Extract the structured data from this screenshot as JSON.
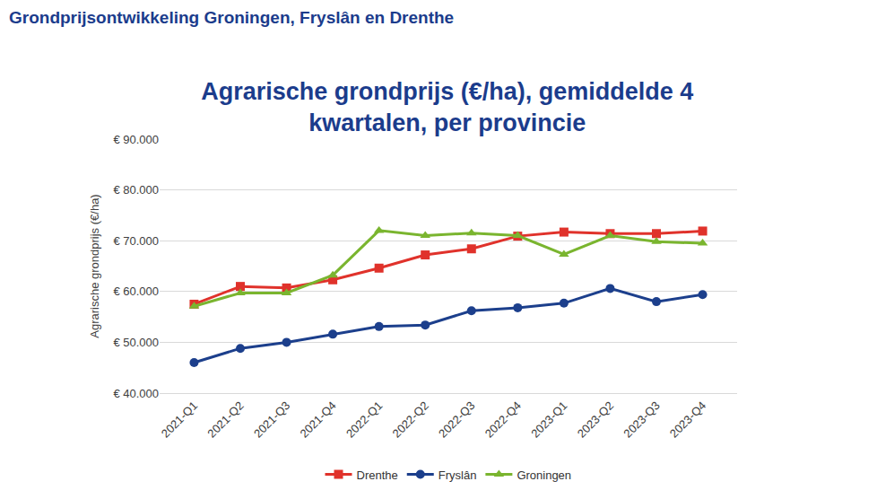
{
  "chart_data": {
    "type": "line",
    "subtitle": "Grondprijsontwikkeling Groningen, Fryslân en Drenthe",
    "title": "Agrarische grondprijs (€/ha), gemiddelde 4 kwartalen, per provincie",
    "y_label": "Agrarische grondprijs (€/ha)",
    "categories": [
      "2021-Q1",
      "2021-Q2",
      "2021-Q3",
      "2021-Q4",
      "2022-Q1",
      "2022-Q2",
      "2022-Q3",
      "2022-Q4",
      "2023-Q1",
      "2023-Q2",
      "2023-Q3",
      "2023-Q4"
    ],
    "series": [
      {
        "name": "Drenthe",
        "color": "#e0322b",
        "marker": "square",
        "values": [
          57500,
          61000,
          60700,
          62300,
          64600,
          67200,
          68400,
          70900,
          71700,
          71400,
          71400,
          71900
        ]
      },
      {
        "name": "Fryslân",
        "color": "#1c3f8c",
        "marker": "circle",
        "values": [
          46000,
          48800,
          50000,
          51600,
          53100,
          53400,
          56200,
          56800,
          57700,
          60600,
          58000,
          59400
        ]
      },
      {
        "name": "Groningen",
        "color": "#7ab52f",
        "marker": "triangle-up",
        "values": [
          57100,
          59700,
          59700,
          63200,
          72000,
          71000,
          71500,
          71000,
          67300,
          71000,
          69800,
          69500
        ]
      }
    ],
    "ylim": [
      40000,
      90000
    ],
    "yticks": [
      {
        "value": 40000,
        "label": "€ 40.000"
      },
      {
        "value": 50000,
        "label": "€ 50.000"
      },
      {
        "value": 60000,
        "label": "€ 60.000"
      },
      {
        "value": 70000,
        "label": "€ 70.000"
      },
      {
        "value": 80000,
        "label": "€ 80.000"
      },
      {
        "value": 90000,
        "label": "€ 90.000"
      }
    ],
    "grid": true,
    "legend": "bottom"
  }
}
